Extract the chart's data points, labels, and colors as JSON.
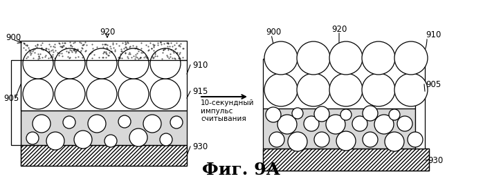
{
  "title": "Фиг. 9А",
  "title_fontsize": 18,
  "bg_color": "#ffffff",
  "arrow_text": "10-секундный\nимпульс\nсчитывания",
  "font_label": 8.5
}
